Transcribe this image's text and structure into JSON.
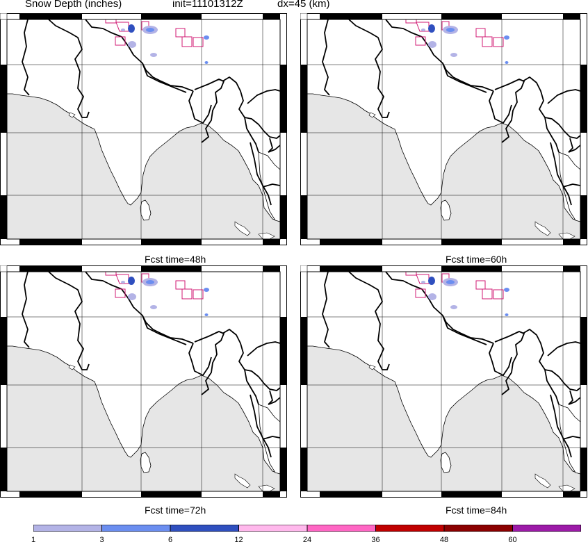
{
  "header": {
    "field": "Snow Depth (inches)",
    "init": "init=11101312Z",
    "resolution": "dx=45 (km)"
  },
  "panels": [
    {
      "fcst_label": "Fcst time=48h",
      "snow_extent": "minimal"
    },
    {
      "fcst_label": "Fcst time=60h",
      "snow_extent": "minimal"
    },
    {
      "fcst_label": "Fcst time=72h",
      "snow_extent": "minimal"
    },
    {
      "fcst_label": "Fcst time=84h",
      "snow_extent": "minimal"
    }
  ],
  "colorbar": {
    "ticks": [
      "1",
      "3",
      "6",
      "12",
      "24",
      "36",
      "48",
      "60"
    ],
    "colors": [
      "#b3b3e6",
      "#6b8ef0",
      "#2f4fbf",
      "#ffb8ec",
      "#ff66c4",
      "#c00000",
      "#8b0000",
      "#9c1aa8"
    ]
  },
  "map": {
    "land_color": "#ffffff",
    "ocean_color": "#e6e6e6",
    "border_color": "#000000",
    "grid_color": "#000000",
    "region_box_color": "#d01873"
  }
}
